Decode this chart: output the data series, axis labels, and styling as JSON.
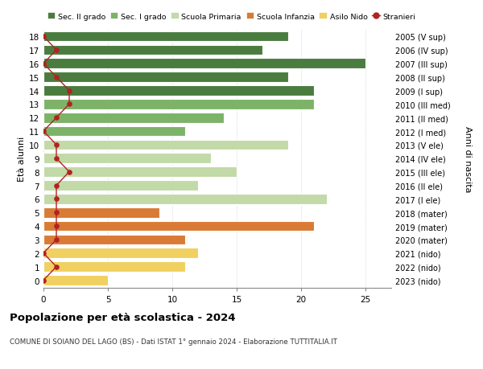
{
  "ages": [
    18,
    17,
    16,
    15,
    14,
    13,
    12,
    11,
    10,
    9,
    8,
    7,
    6,
    5,
    4,
    3,
    2,
    1,
    0
  ],
  "right_labels": [
    "2005 (V sup)",
    "2006 (IV sup)",
    "2007 (III sup)",
    "2008 (II sup)",
    "2009 (I sup)",
    "2010 (III med)",
    "2011 (II med)",
    "2012 (I med)",
    "2013 (V ele)",
    "2014 (IV ele)",
    "2015 (III ele)",
    "2016 (II ele)",
    "2017 (I ele)",
    "2018 (mater)",
    "2019 (mater)",
    "2020 (mater)",
    "2021 (nido)",
    "2022 (nido)",
    "2023 (nido)"
  ],
  "bar_values": [
    19,
    17,
    25,
    19,
    21,
    21,
    14,
    11,
    19,
    13,
    15,
    12,
    22,
    9,
    21,
    11,
    12,
    11,
    5
  ],
  "bar_colors": [
    "#4a7c3f",
    "#4a7c3f",
    "#4a7c3f",
    "#4a7c3f",
    "#4a7c3f",
    "#7db368",
    "#7db368",
    "#7db368",
    "#c2d9a8",
    "#c2d9a8",
    "#c2d9a8",
    "#c2d9a8",
    "#c2d9a8",
    "#d97b35",
    "#d97b35",
    "#d97b35",
    "#f0d060",
    "#f0d060",
    "#f0d060"
  ],
  "stranieri_values": [
    0,
    1,
    0,
    1,
    2,
    2,
    1,
    0,
    1,
    1,
    2,
    1,
    1,
    1,
    1,
    1,
    0,
    1,
    0
  ],
  "legend_labels": [
    "Sec. II grado",
    "Sec. I grado",
    "Scuola Primaria",
    "Scuola Infanzia",
    "Asilo Nido",
    "Stranieri"
  ],
  "legend_colors": [
    "#4a7c3f",
    "#7db368",
    "#c2d9a8",
    "#d97b35",
    "#f0d060",
    "#b22222"
  ],
  "ylabel_left": "Età alunni",
  "ylabel_right": "Anni di nascita",
  "title": "Popolazione per età scolastica - 2024",
  "subtitle": "COMUNE DI SOIANO DEL LAGO (BS) - Dati ISTAT 1° gennaio 2024 - Elaborazione TUTTITALIA.IT",
  "xlim": [
    0,
    27
  ],
  "bg_color": "#ffffff",
  "grid_color": "#cccccc",
  "bar_height": 0.75
}
